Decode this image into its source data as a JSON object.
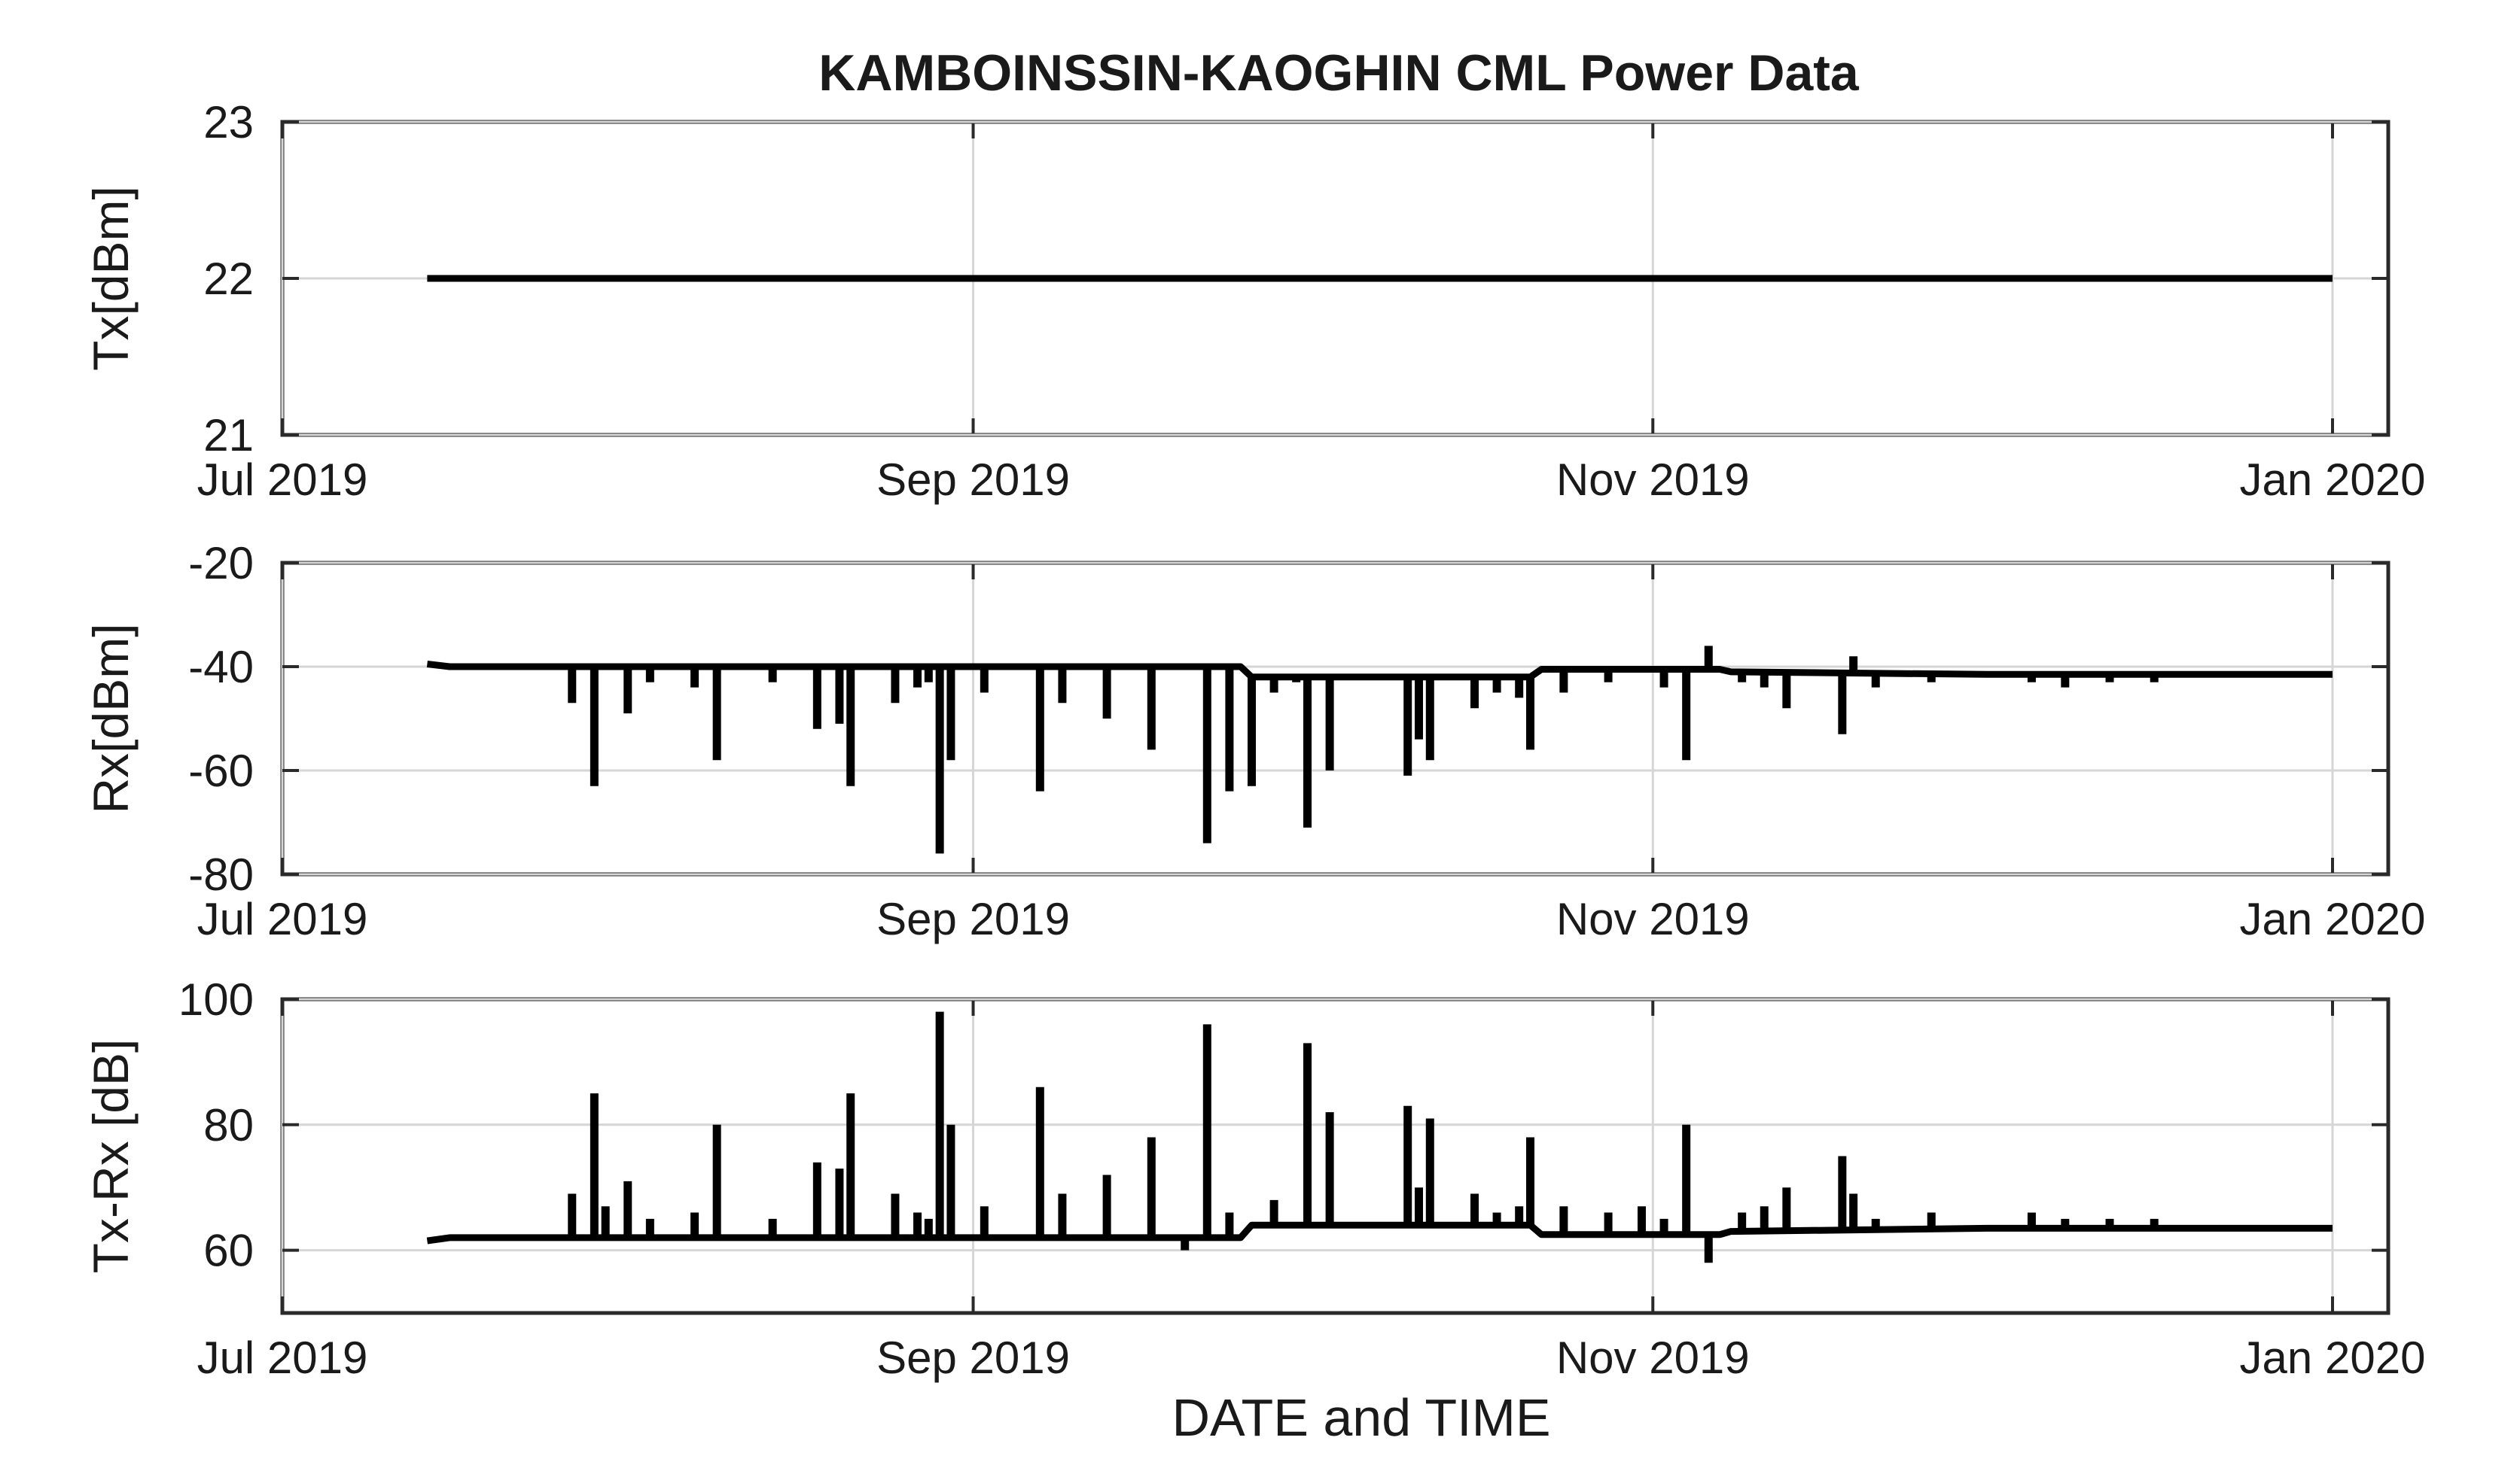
{
  "figure": {
    "title": "KAMBOINSSIN-KAOGHIN CML Power Data",
    "xlabel": "DATE and TIME"
  },
  "chart_data": [
    {
      "type": "line",
      "id": "tx",
      "ylabel": "Tx[dBm]",
      "xlim": [
        "2019-07-01",
        "2020-01-06"
      ],
      "ylim": [
        21,
        23
      ],
      "xticks": [
        {
          "date": "2019-07-01",
          "label": "Jul 2019"
        },
        {
          "date": "2019-09-01",
          "label": "Sep 2019"
        },
        {
          "date": "2019-11-01",
          "label": "Nov 2019"
        },
        {
          "date": "2020-01-01",
          "label": "Jan 2020"
        }
      ],
      "yticks": [
        21,
        22,
        23
      ],
      "grid": true,
      "color": "#000000",
      "baseline": [
        [
          "2019-07-14",
          22
        ],
        [
          "2020-01-01",
          22
        ]
      ],
      "spikes": []
    },
    {
      "type": "line",
      "id": "rx",
      "ylabel": "Rx[dBm]",
      "xlim": [
        "2019-07-01",
        "2020-01-06"
      ],
      "ylim": [
        -80,
        -20
      ],
      "xticks": [
        {
          "date": "2019-07-01",
          "label": "Jul 2019"
        },
        {
          "date": "2019-09-01",
          "label": "Sep 2019"
        },
        {
          "date": "2019-11-01",
          "label": "Nov 2019"
        },
        {
          "date": "2020-01-01",
          "label": "Jan 2020"
        }
      ],
      "yticks": [
        -80,
        -60,
        -40,
        -20
      ],
      "grid": true,
      "color": "#000000",
      "baseline": [
        [
          "2019-07-14",
          -39.5
        ],
        [
          "2019-07-16",
          -40
        ],
        [
          "2019-09-25",
          -40
        ],
        [
          "2019-09-26",
          -42
        ],
        [
          "2019-10-21",
          -42
        ],
        [
          "2019-10-22",
          -40.5
        ],
        [
          "2019-11-07",
          -40.5
        ],
        [
          "2019-11-08",
          -41
        ],
        [
          "2019-12-01",
          -41.5
        ],
        [
          "2020-01-01",
          -41.5
        ]
      ],
      "spikes": [
        [
          "2019-07-27",
          -47
        ],
        [
          "2019-07-29",
          -63
        ],
        [
          "2019-08-01",
          -49
        ],
        [
          "2019-08-03",
          -43
        ],
        [
          "2019-08-07",
          -44
        ],
        [
          "2019-08-09",
          -58
        ],
        [
          "2019-08-14",
          -43
        ],
        [
          "2019-08-18",
          -52
        ],
        [
          "2019-08-20",
          -51
        ],
        [
          "2019-08-21",
          -63
        ],
        [
          "2019-08-25",
          -47
        ],
        [
          "2019-08-27",
          -44
        ],
        [
          "2019-08-28",
          -43
        ],
        [
          "2019-08-29",
          -76
        ],
        [
          "2019-08-30",
          -58
        ],
        [
          "2019-09-02",
          -45
        ],
        [
          "2019-09-07",
          -64
        ],
        [
          "2019-09-09",
          -47
        ],
        [
          "2019-09-13",
          -50
        ],
        [
          "2019-09-17",
          -56
        ],
        [
          "2019-09-20",
          -40
        ],
        [
          "2019-09-22",
          -74
        ],
        [
          "2019-09-24",
          -64
        ],
        [
          "2019-09-26",
          -63
        ],
        [
          "2019-09-28",
          -45
        ],
        [
          "2019-09-30",
          -43
        ],
        [
          "2019-10-01",
          -71
        ],
        [
          "2019-10-03",
          -60
        ],
        [
          "2019-10-10",
          -61
        ],
        [
          "2019-10-11",
          -54
        ],
        [
          "2019-10-12",
          -58
        ],
        [
          "2019-10-16",
          -48
        ],
        [
          "2019-10-18",
          -45
        ],
        [
          "2019-10-20",
          -46
        ],
        [
          "2019-10-21",
          -56
        ],
        [
          "2019-10-24",
          -45
        ],
        [
          "2019-10-28",
          -43
        ],
        [
          "2019-10-31",
          -40
        ],
        [
          "2019-11-02",
          -44
        ],
        [
          "2019-11-04",
          -58
        ],
        [
          "2019-11-06",
          -36
        ],
        [
          "2019-11-09",
          -43
        ],
        [
          "2019-11-11",
          -44
        ],
        [
          "2019-11-13",
          -48
        ],
        [
          "2019-11-18",
          -53
        ],
        [
          "2019-11-19",
          -38
        ],
        [
          "2019-11-21",
          -44
        ],
        [
          "2019-11-26",
          -43
        ],
        [
          "2019-12-05",
          -43
        ],
        [
          "2019-12-08",
          -44
        ],
        [
          "2019-12-12",
          -43
        ],
        [
          "2019-12-16",
          -43
        ],
        [
          "2019-12-22",
          -42
        ]
      ]
    },
    {
      "type": "line",
      "id": "txrx",
      "ylabel": "Tx-Rx [dB]",
      "xlim": [
        "2019-07-01",
        "2020-01-06"
      ],
      "ylim": [
        50,
        100
      ],
      "xticks": [
        {
          "date": "2019-07-01",
          "label": "Jul 2019"
        },
        {
          "date": "2019-09-01",
          "label": "Sep 2019"
        },
        {
          "date": "2019-11-01",
          "label": "Nov 2019"
        },
        {
          "date": "2020-01-01",
          "label": "Jan 2020"
        }
      ],
      "yticks": [
        60,
        80,
        100
      ],
      "grid": true,
      "color": "#000000",
      "baseline": [
        [
          "2019-07-14",
          61.5
        ],
        [
          "2019-07-16",
          62
        ],
        [
          "2019-09-25",
          62
        ],
        [
          "2019-09-26",
          64
        ],
        [
          "2019-10-21",
          64
        ],
        [
          "2019-10-22",
          62.5
        ],
        [
          "2019-11-07",
          62.5
        ],
        [
          "2019-11-08",
          63
        ],
        [
          "2019-12-01",
          63.5
        ],
        [
          "2020-01-01",
          63.5
        ]
      ],
      "spikes": [
        [
          "2019-07-27",
          69
        ],
        [
          "2019-07-29",
          85
        ],
        [
          "2019-07-30",
          67
        ],
        [
          "2019-08-01",
          71
        ],
        [
          "2019-08-03",
          65
        ],
        [
          "2019-08-07",
          66
        ],
        [
          "2019-08-09",
          80
        ],
        [
          "2019-08-14",
          65
        ],
        [
          "2019-08-18",
          74
        ],
        [
          "2019-08-20",
          73
        ],
        [
          "2019-08-21",
          85
        ],
        [
          "2019-08-25",
          69
        ],
        [
          "2019-08-27",
          66
        ],
        [
          "2019-08-28",
          65
        ],
        [
          "2019-08-29",
          98
        ],
        [
          "2019-08-30",
          80
        ],
        [
          "2019-09-02",
          67
        ],
        [
          "2019-09-07",
          86
        ],
        [
          "2019-09-09",
          69
        ],
        [
          "2019-09-13",
          72
        ],
        [
          "2019-09-17",
          78
        ],
        [
          "2019-09-20",
          60
        ],
        [
          "2019-09-22",
          96
        ],
        [
          "2019-09-24",
          66
        ],
        [
          "2019-09-28",
          68
        ],
        [
          "2019-10-01",
          93
        ],
        [
          "2019-10-03",
          82
        ],
        [
          "2019-10-10",
          83
        ],
        [
          "2019-10-11",
          70
        ],
        [
          "2019-10-12",
          81
        ],
        [
          "2019-10-16",
          69
        ],
        [
          "2019-10-18",
          66
        ],
        [
          "2019-10-20",
          67
        ],
        [
          "2019-10-21",
          78
        ],
        [
          "2019-10-24",
          67
        ],
        [
          "2019-10-28",
          66
        ],
        [
          "2019-10-31",
          67
        ],
        [
          "2019-11-02",
          65
        ],
        [
          "2019-11-04",
          80
        ],
        [
          "2019-11-06",
          58
        ],
        [
          "2019-11-09",
          66
        ],
        [
          "2019-11-11",
          67
        ],
        [
          "2019-11-13",
          70
        ],
        [
          "2019-11-18",
          75
        ],
        [
          "2019-11-19",
          69
        ],
        [
          "2019-11-21",
          65
        ],
        [
          "2019-11-26",
          66
        ],
        [
          "2019-12-05",
          66
        ],
        [
          "2019-12-08",
          65
        ],
        [
          "2019-12-12",
          65
        ],
        [
          "2019-12-16",
          65
        ],
        [
          "2019-12-22",
          64
        ]
      ]
    }
  ]
}
